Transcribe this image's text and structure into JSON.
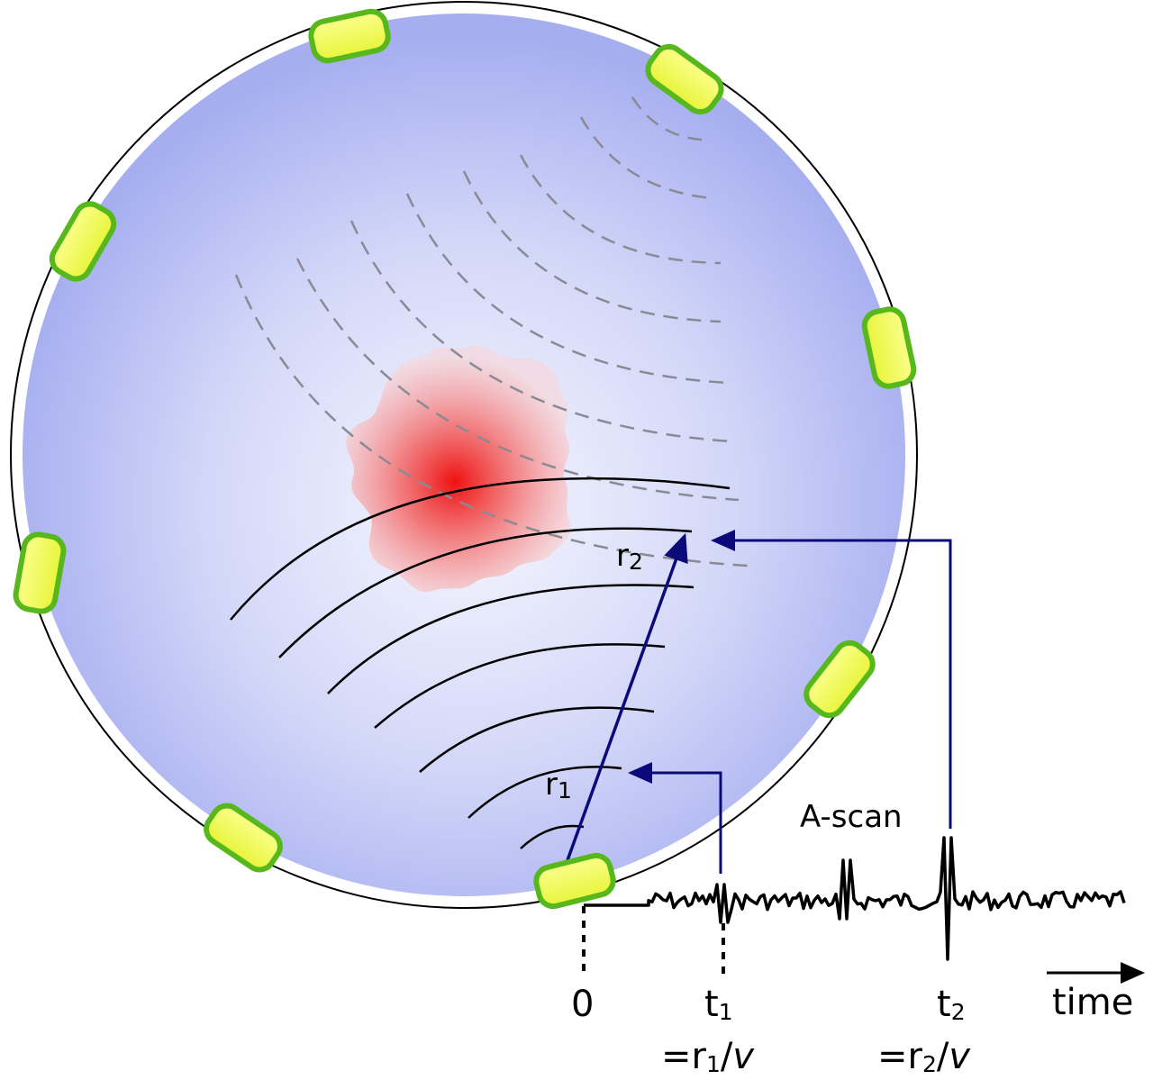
{
  "labels": {
    "r2": "r",
    "r2_sub": "2",
    "r1": "r",
    "r1_sub": "1",
    "a_scan": "A-scan",
    "t0": "0",
    "t1": "t",
    "t1_sub": "1",
    "t2": "t",
    "t2_sub": "2",
    "time": "time",
    "eq1_pre": "=r",
    "eq1_sub": "1",
    "eq1_post": "/",
    "eq1_v": "v",
    "eq2_pre": "=r",
    "eq2_sub": "2",
    "eq2_post": "/",
    "eq2_v": "v"
  },
  "colors": {
    "sphere_center": "#f4f5fd",
    "sphere_edge": "#a9b0f0",
    "tumor": "#ee1111",
    "transducer_fill": "#f4fb4a",
    "transducer_edge": "#57b81e",
    "arrow": "#0a0a7a",
    "dashed": "#8a8a95"
  },
  "icons": {
    "transducer": "transducer-icon",
    "arrow_head": "arrow-head-icon"
  }
}
